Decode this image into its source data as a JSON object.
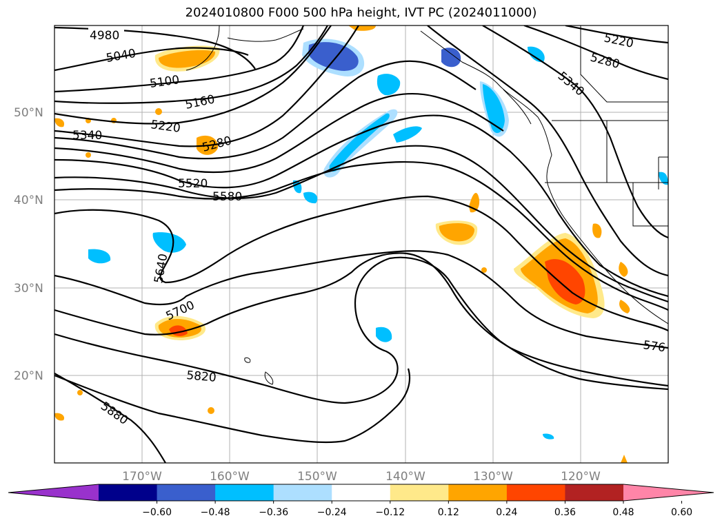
{
  "title": "2024010800 F000 500 hPa height, IVT PC (2024011000)",
  "lat_labels": [
    "50°N",
    "40°N",
    "30°N",
    "20°N"
  ],
  "lon_labels": [
    "170°W",
    "160°W",
    "150°W",
    "140°W",
    "130°W",
    "120°W"
  ],
  "contour_labels": [
    "4980",
    "5040",
    "5100",
    "5160",
    "5220",
    "5280",
    "5340",
    "5520",
    "5580",
    "5640",
    "5700",
    "5820",
    "5880",
    "5220",
    "5280",
    "5340",
    "576"
  ],
  "colorbar": {
    "ticks": [
      "−0.60",
      "−0.48",
      "−0.36",
      "−0.24",
      "−0.12",
      "0.12",
      "0.24",
      "0.36",
      "0.48",
      "0.60"
    ],
    "colors": [
      "#9932CC",
      "#00008B",
      "#3A5FCD",
      "#00BFFF",
      "#ADDFFF",
      "#FFFFFF",
      "#FFE98A",
      "#FFA500",
      "#FF4500",
      "#B22222",
      "#FF85A8"
    ]
  }
}
